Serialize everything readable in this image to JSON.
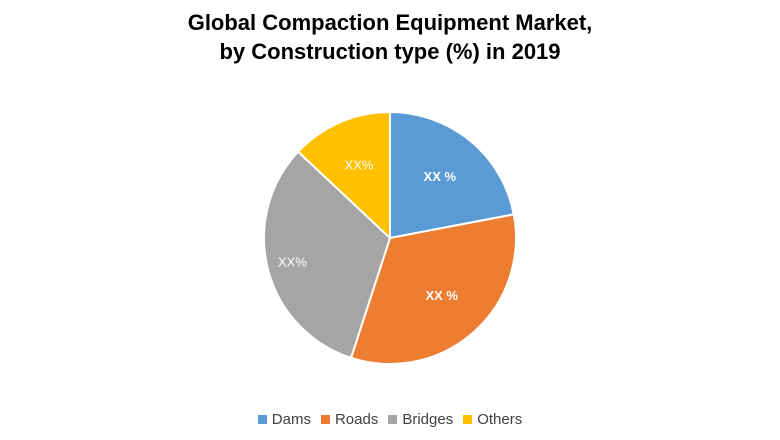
{
  "chart_data": {
    "type": "pie",
    "title": "Global Compaction Equipment Market, by Construction type (%) in 2019",
    "title_lines": [
      "Global Compaction Equipment Market,",
      "by Construction type (%) in 2019"
    ],
    "legend_position": "bottom",
    "slices": [
      {
        "label": "Dams",
        "value": 22,
        "data_label": "XX %",
        "color": "#5B9BD5"
      },
      {
        "label": "Roads",
        "value": 33,
        "data_label": "XX %",
        "color": "#ED7D31"
      },
      {
        "label": "Bridges",
        "value": 32,
        "data_label": "XX%",
        "color": "#A5A5A5"
      },
      {
        "label": "Others",
        "value": 13,
        "data_label": "XX%",
        "color": "#FFC000"
      }
    ]
  }
}
